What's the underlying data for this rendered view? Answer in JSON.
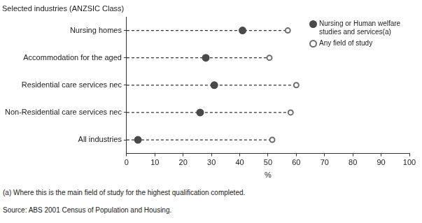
{
  "chart_data": {
    "type": "dot",
    "orientation": "horizontal",
    "y_label": "Selected industries (ANZSIC Class)",
    "x_label": "%",
    "categories": [
      "Nursing homes",
      "Accommodation for the aged",
      "Residential care services nec",
      "Non-Residential care services nec",
      "All industries"
    ],
    "series": [
      {
        "name": "Nursing or Human welfare studies and services(a)",
        "color": "#4a4a4a",
        "marker": "circle",
        "values": [
          41,
          28,
          31,
          26,
          4
        ]
      },
      {
        "name": "Any field of study",
        "color": "#6e6e6e",
        "marker": "circle_open",
        "values": [
          57,
          50.5,
          60,
          58,
          51.5
        ]
      }
    ],
    "xlim": [
      0,
      100
    ],
    "xticks": [
      0,
      10,
      20,
      30,
      40,
      50,
      60,
      70,
      80,
      90,
      100
    ],
    "line_style": "dashed",
    "grid": false,
    "legend": "top-right",
    "annotations": [
      "(a) Where this is the main field of study for the highest qualification completed.",
      "Source: ABS 2001 Census of Population and Housing."
    ]
  }
}
